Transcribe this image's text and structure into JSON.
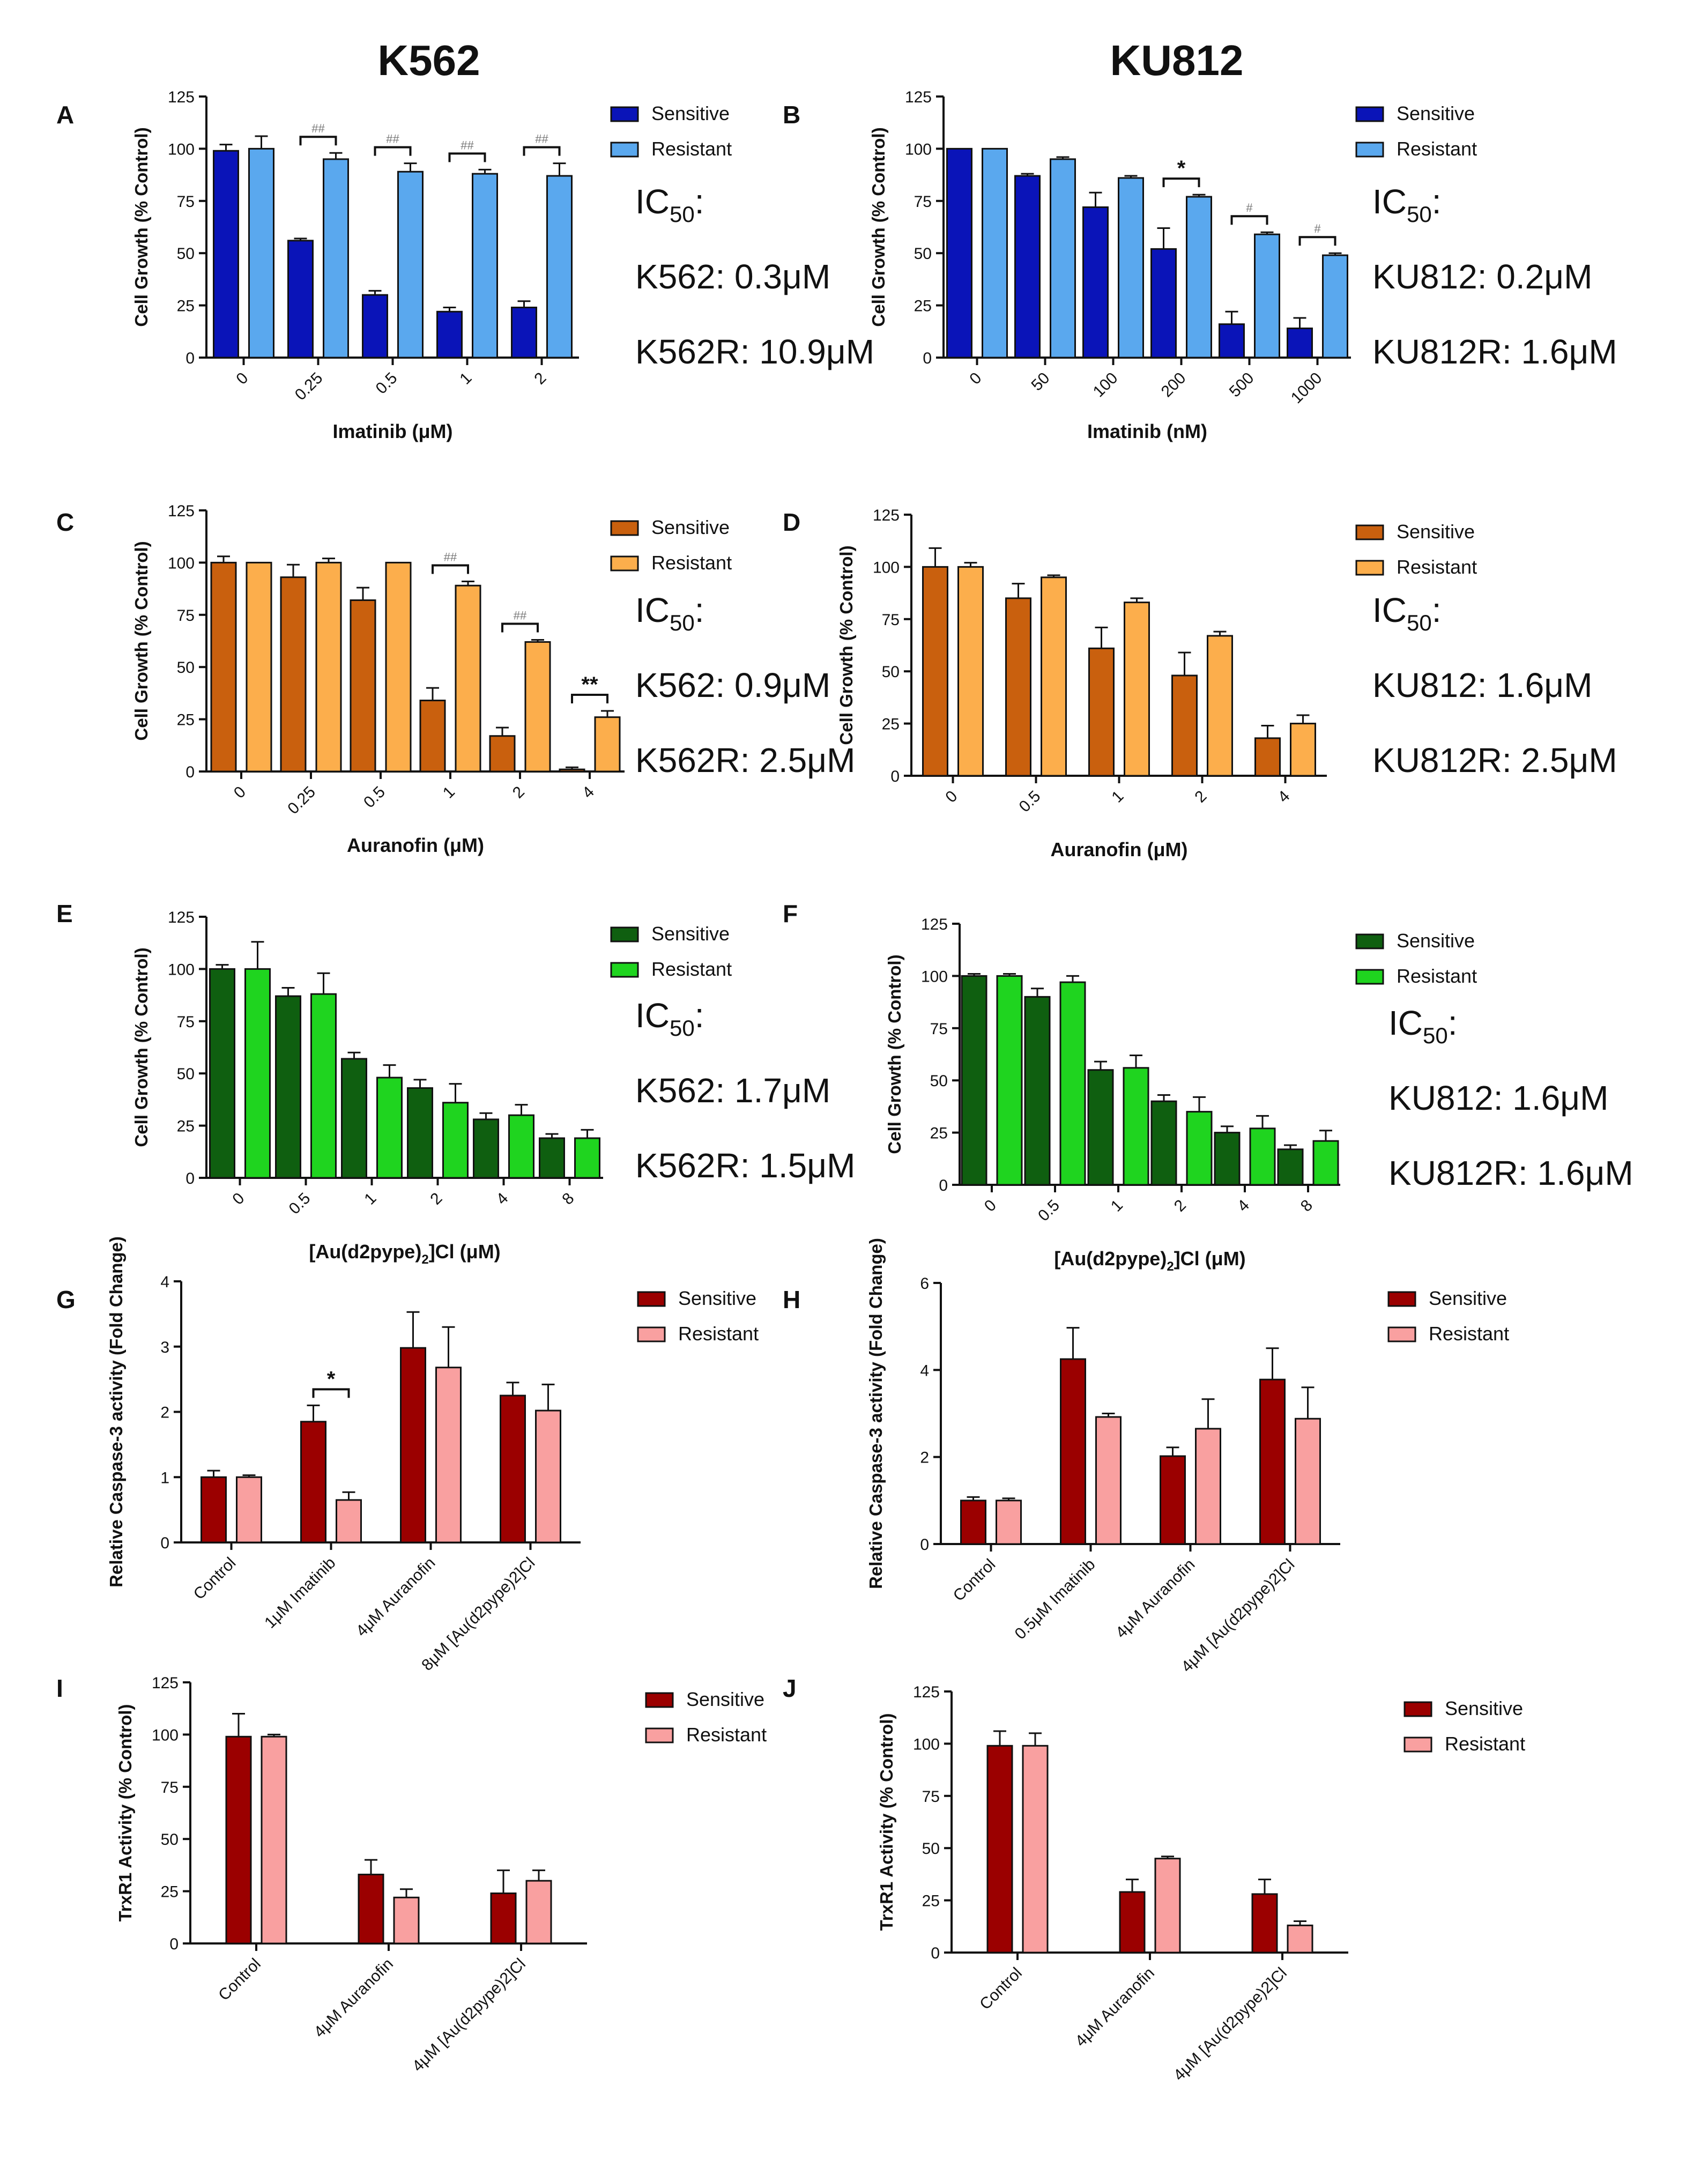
{
  "column_titles": [
    "K562",
    "KU812"
  ],
  "legend_labels": [
    "Sensitive",
    "Resistant"
  ],
  "chart_data": [
    {
      "id": "A",
      "panel_letter": "A",
      "type": "bar",
      "categories": [
        "0",
        "0.25",
        "0.5",
        "1",
        "2"
      ],
      "series": [
        {
          "name": "Sensitive",
          "color": "#0a14b8",
          "values": [
            99,
            56,
            30,
            22,
            24
          ],
          "errors": [
            3,
            1,
            2,
            2,
            3
          ]
        },
        {
          "name": "Resistant",
          "color": "#5aa8ee",
          "values": [
            100,
            95,
            89,
            88,
            87
          ],
          "errors": [
            6,
            3,
            4,
            2,
            6
          ]
        }
      ],
      "xlabel": "Imatinib (μM)",
      "ylabel": "Cell Growth (% Control)",
      "ylim": [
        0,
        125
      ],
      "yticks": [
        "0",
        "25",
        "50",
        "75",
        "100",
        "125"
      ],
      "significance": [
        {
          "category_index": 1,
          "label": "##"
        },
        {
          "category_index": 2,
          "label": "##"
        },
        {
          "category_index": 3,
          "label": "##"
        },
        {
          "category_index": 4,
          "label": "##"
        }
      ],
      "ic50": {
        "title": "IC",
        "sub": "50",
        "suffix": ":",
        "lines": [
          "K562: 0.3μM",
          "K562R: 10.9μM"
        ]
      }
    },
    {
      "id": "B",
      "panel_letter": "B",
      "type": "bar",
      "categories": [
        "0",
        "50",
        "100",
        "200",
        "500",
        "1000"
      ],
      "series": [
        {
          "name": "Sensitive",
          "color": "#0a14b8",
          "values": [
            100,
            87,
            72,
            52,
            16,
            14
          ],
          "errors": [
            0,
            1,
            7,
            10,
            6,
            5
          ]
        },
        {
          "name": "Resistant",
          "color": "#5aa8ee",
          "values": [
            100,
            95,
            86,
            77,
            59,
            49
          ],
          "errors": [
            0,
            1,
            1,
            1,
            1,
            1
          ]
        }
      ],
      "xlabel": "Imatinib (nM)",
      "ylabel": "Cell Growth (% Control)",
      "ylim": [
        0,
        125
      ],
      "yticks": [
        "0",
        "25",
        "50",
        "75",
        "100",
        "125"
      ],
      "significance": [
        {
          "category_index": 3,
          "label": "*"
        },
        {
          "category_index": 4,
          "label": "#"
        },
        {
          "category_index": 5,
          "label": "#"
        }
      ],
      "ic50": {
        "title": "IC",
        "sub": "50",
        "suffix": ":",
        "lines": [
          "KU812: 0.2μM",
          "KU812R: 1.6μM"
        ]
      }
    },
    {
      "id": "C",
      "panel_letter": "C",
      "type": "bar",
      "categories": [
        "0",
        "0.25",
        "0.5",
        "1",
        "2",
        "4"
      ],
      "series": [
        {
          "name": "Sensitive",
          "color": "#c9600e",
          "values": [
            100,
            93,
            82,
            34,
            17,
            1
          ],
          "errors": [
            3,
            6,
            6,
            6,
            4,
            1
          ]
        },
        {
          "name": "Resistant",
          "color": "#fcae4c",
          "values": [
            100,
            100,
            100,
            89,
            62,
            26
          ],
          "errors": [
            0,
            2,
            0,
            2,
            1,
            3
          ]
        }
      ],
      "xlabel": "Auranofin (μM)",
      "ylabel": "Cell Growth (% Control)",
      "ylim": [
        0,
        125
      ],
      "yticks": [
        "0",
        "25",
        "50",
        "75",
        "100",
        "125"
      ],
      "significance": [
        {
          "category_index": 3,
          "label": "##"
        },
        {
          "category_index": 4,
          "label": "##"
        },
        {
          "category_index": 5,
          "label": "**"
        }
      ],
      "ic50": {
        "title": "IC",
        "sub": "50",
        "suffix": ":",
        "lines": [
          "K562: 0.9μM",
          "K562R: 2.5μM"
        ]
      }
    },
    {
      "id": "D",
      "panel_letter": "D",
      "type": "bar",
      "categories": [
        "0",
        "0.5",
        "1",
        "2",
        "4"
      ],
      "series": [
        {
          "name": "Sensitive",
          "color": "#c9600e",
          "values": [
            100,
            85,
            61,
            48,
            18
          ],
          "errors": [
            9,
            7,
            10,
            11,
            6
          ]
        },
        {
          "name": "Resistant",
          "color": "#fcae4c",
          "values": [
            100,
            95,
            83,
            67,
            25
          ],
          "errors": [
            2,
            1,
            2,
            2,
            4
          ]
        }
      ],
      "xlabel": "Auranofin (μM)",
      "ylabel": "Cell Growth (% Control)",
      "ylim": [
        0,
        125
      ],
      "yticks": [
        "0",
        "25",
        "50",
        "75",
        "100",
        "125"
      ],
      "significance": [],
      "ic50": {
        "title": "IC",
        "sub": "50",
        "suffix": ":",
        "lines": [
          "KU812: 1.6μM",
          "KU812R: 2.5μM"
        ]
      }
    },
    {
      "id": "E",
      "panel_letter": "E",
      "type": "bar",
      "categories": [
        "0",
        "0.5",
        "1",
        "2",
        "4",
        "8"
      ],
      "series": [
        {
          "name": "Sensitive",
          "color": "#0f5f10",
          "values": [
            100,
            87,
            57,
            43,
            28,
            19
          ],
          "errors": [
            2,
            4,
            3,
            4,
            3,
            2
          ]
        },
        {
          "name": "Resistant",
          "color": "#1fd41f",
          "values": [
            100,
            88,
            48,
            36,
            30,
            19
          ],
          "errors": [
            13,
            10,
            6,
            9,
            5,
            4
          ]
        }
      ],
      "xlabel": "[Au(d2pype)",
      "xlabel_sub": "2",
      "xlabel_end": "]Cl (μM)",
      "ylabel": "Cell Growth (% Control)",
      "ylim": [
        0,
        125
      ],
      "yticks": [
        "0",
        "25",
        "50",
        "75",
        "100",
        "125"
      ],
      "significance": [],
      "ic50": {
        "title": "IC",
        "sub": "50",
        "suffix": ":",
        "lines": [
          "K562: 1.7μM",
          "K562R: 1.5μM"
        ]
      }
    },
    {
      "id": "F",
      "panel_letter": "F",
      "type": "bar",
      "categories": [
        "0",
        "0.5",
        "1",
        "2",
        "4",
        "8"
      ],
      "series": [
        {
          "name": "Sensitive",
          "color": "#0f5f10",
          "values": [
            100,
            90,
            55,
            40,
            25,
            17
          ],
          "errors": [
            1,
            4,
            4,
            3,
            3,
            2
          ]
        },
        {
          "name": "Resistant",
          "color": "#1fd41f",
          "values": [
            100,
            97,
            56,
            35,
            27,
            21
          ],
          "errors": [
            1,
            3,
            6,
            7,
            6,
            5
          ]
        }
      ],
      "xlabel": "[Au(d2pype)",
      "xlabel_sub": "2",
      "xlabel_end": "]Cl (μM)",
      "ylabel": "Cell Growth (% Control)",
      "ylim": [
        0,
        125
      ],
      "yticks": [
        "0",
        "25",
        "50",
        "75",
        "100",
        "125"
      ],
      "significance": [],
      "ic50": {
        "title": "IC",
        "sub": "50",
        "suffix": ":",
        "lines": [
          "KU812: 1.6μM",
          "KU812R: 1.6μM"
        ]
      }
    },
    {
      "id": "G",
      "panel_letter": "G",
      "type": "bar",
      "categories": [
        "Control",
        "1μM Imatinib",
        "4μM Auranofin",
        "8μM [Au(d2pype)2]Cl"
      ],
      "series": [
        {
          "name": "Sensitive",
          "color": "#9b0000",
          "values": [
            1.0,
            1.85,
            2.98,
            2.25
          ],
          "errors": [
            0.1,
            0.25,
            0.55,
            0.2
          ]
        },
        {
          "name": "Resistant",
          "color": "#f9a0a0",
          "values": [
            1.0,
            0.65,
            2.68,
            2.02
          ],
          "errors": [
            0.03,
            0.12,
            0.62,
            0.4
          ]
        }
      ],
      "xlabel": "",
      "ylabel": "Relative Caspase-3 activity (Fold Change)",
      "ylim": [
        0,
        4
      ],
      "yticks": [
        "0",
        "1",
        "2",
        "3",
        "4"
      ],
      "significance": [
        {
          "category_index": 1,
          "label": "*"
        }
      ],
      "ic50": null
    },
    {
      "id": "H",
      "panel_letter": "H",
      "type": "bar",
      "categories": [
        "Control",
        "0.5μM Imatinib",
        "4μM Auranofin",
        "4μM [Au(d2pype)2]Cl"
      ],
      "series": [
        {
          "name": "Sensitive",
          "color": "#9b0000",
          "values": [
            1.0,
            4.25,
            2.02,
            3.78
          ],
          "errors": [
            0.08,
            0.72,
            0.2,
            0.72
          ]
        },
        {
          "name": "Resistant",
          "color": "#f9a0a0",
          "values": [
            1.0,
            2.92,
            2.65,
            2.88
          ],
          "errors": [
            0.05,
            0.08,
            0.68,
            0.72
          ]
        }
      ],
      "xlabel": "",
      "ylabel": "Relative Caspase-3 activity (Fold Change)",
      "ylim": [
        0,
        6
      ],
      "yticks": [
        "0",
        "2",
        "4",
        "6"
      ],
      "significance": [],
      "ic50": null
    },
    {
      "id": "I",
      "panel_letter": "I",
      "type": "bar",
      "categories": [
        "Control",
        "4μM Auranofin",
        "4μM [Au(d2pype)2]Cl"
      ],
      "series": [
        {
          "name": "Sensitive",
          "color": "#9b0000",
          "values": [
            99,
            33,
            24
          ],
          "errors": [
            11,
            7,
            11
          ]
        },
        {
          "name": "Resistant",
          "color": "#f9a0a0",
          "values": [
            99,
            22,
            30
          ],
          "errors": [
            1,
            4,
            5
          ]
        }
      ],
      "xlabel": "",
      "ylabel": "TrxR1 Activity (% Control)",
      "ylim": [
        0,
        125
      ],
      "yticks": [
        "0",
        "25",
        "50",
        "75",
        "100",
        "125"
      ],
      "significance": [],
      "ic50": null
    },
    {
      "id": "J",
      "panel_letter": "J",
      "type": "bar",
      "categories": [
        "Control",
        "4μM Auranofin",
        "4μM [Au(d2pype)2]Cl"
      ],
      "series": [
        {
          "name": "Sensitive",
          "color": "#9b0000",
          "values": [
            99,
            29,
            28
          ],
          "errors": [
            7,
            6,
            7
          ]
        },
        {
          "name": "Resistant",
          "color": "#f9a0a0",
          "values": [
            99,
            45,
            13
          ],
          "errors": [
            6,
            1,
            2
          ]
        }
      ],
      "xlabel": "",
      "ylabel": "TrxR1 Activity (% Control)",
      "ylim": [
        0,
        125
      ],
      "yticks": [
        "0",
        "25",
        "50",
        "75",
        "100",
        "125"
      ],
      "significance": [],
      "ic50": null
    }
  ]
}
